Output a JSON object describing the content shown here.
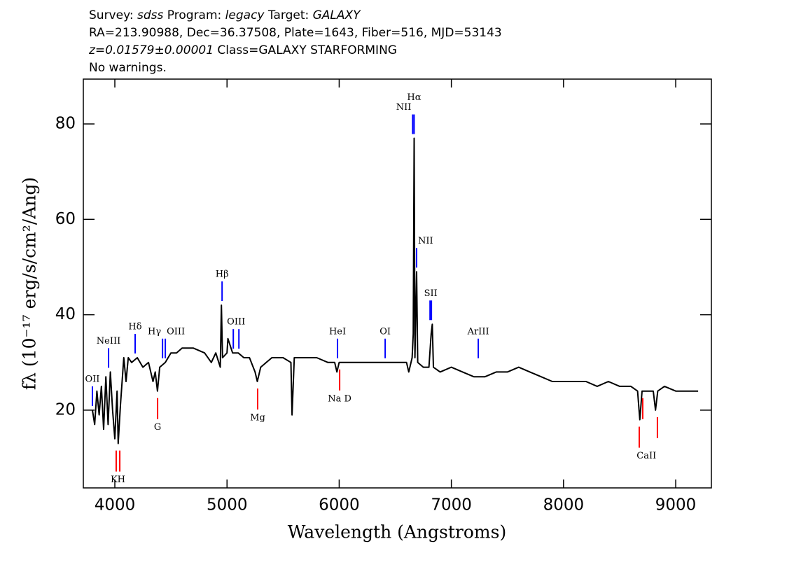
{
  "chart_data": {
    "type": "line",
    "header": [
      [
        {
          "text": "Survey: ",
          "italic": false
        },
        {
          "text": "sdss",
          "italic": true
        },
        {
          "text": " Program: ",
          "italic": false
        },
        {
          "text": "legacy",
          "italic": true
        },
        {
          "text": " Target: ",
          "italic": false
        },
        {
          "text": "GALAXY",
          "italic": true
        }
      ],
      [
        {
          "text": "RA=213.90988, Dec=36.37508, Plate=1643, Fiber=516, MJD=53143",
          "italic": false
        }
      ],
      [
        {
          "text": "z=0.01579±0.00001",
          "italic": true
        },
        {
          "text": " Class=GALAXY STARFORMING",
          "italic": false
        }
      ],
      [
        {
          "text": "No warnings.",
          "italic": false
        }
      ]
    ],
    "xlabel": "Wavelength (Angstroms)",
    "ylabel": "fλ (10⁻¹⁷ erg/s/cm²/Ang)",
    "color": "#000000",
    "emission_color": "#0000ff",
    "absorption_color": "#ff0000",
    "xlim": [
      3719,
      9318
    ],
    "ylim": [
      3.7,
      89.4
    ],
    "xticks": [
      4000,
      5000,
      6000,
      7000,
      8000,
      9000
    ],
    "yticks": [
      20,
      40,
      60,
      80
    ],
    "x": [
      3800,
      3820,
      3840,
      3860,
      3880,
      3900,
      3920,
      3940,
      3960,
      3980,
      4000,
      4020,
      4030,
      4050,
      4080,
      4100,
      4120,
      4150,
      4200,
      4250,
      4300,
      4340,
      4360,
      4380,
      4400,
      4450,
      4500,
      4550,
      4600,
      4700,
      4800,
      4860,
      4900,
      4940,
      4950,
      4960,
      5000,
      5008,
      5050,
      5100,
      5150,
      5200,
      5250,
      5270,
      5300,
      5400,
      5500,
      5570,
      5580,
      5600,
      5700,
      5800,
      5900,
      5960,
      5980,
      6000,
      6100,
      6200,
      6300,
      6400,
      6500,
      6600,
      6620,
      6650,
      6660,
      6668,
      6675,
      6690,
      6700,
      6750,
      6800,
      6820,
      6830,
      6840,
      6900,
      7000,
      7100,
      7200,
      7300,
      7400,
      7500,
      7600,
      7700,
      7800,
      7900,
      8000,
      8100,
      8200,
      8300,
      8400,
      8500,
      8600,
      8660,
      8680,
      8700,
      8800,
      8820,
      8840,
      8900,
      9000,
      9100,
      9200
    ],
    "values": [
      20,
      17,
      24,
      19,
      25,
      16,
      27,
      17,
      28,
      20,
      14,
      24,
      13,
      21,
      31,
      26,
      31,
      30,
      31,
      29,
      30,
      26,
      28,
      24,
      29,
      30,
      32,
      32,
      33,
      33,
      32,
      30,
      32,
      29,
      42,
      31,
      32,
      35,
      32,
      32,
      31,
      31,
      28,
      26,
      29,
      31,
      31,
      30,
      19,
      31,
      31,
      31,
      30,
      30,
      28,
      30,
      30,
      30,
      30,
      30,
      30,
      30,
      28,
      31,
      36,
      77,
      31,
      49,
      30,
      29,
      29,
      36,
      38,
      29,
      28,
      29,
      28,
      27,
      27,
      28,
      28,
      29,
      28,
      27,
      26,
      26,
      26,
      26,
      25,
      26,
      25,
      25,
      24,
      18,
      24,
      24,
      20,
      24,
      25,
      24,
      24,
      24
    ],
    "annotations": [
      {
        "text": "OII",
        "x": [
          3800
        ],
        "kind": "emission"
      },
      {
        "text": "NeIII",
        "x": [
          3944
        ],
        "kind": "emission"
      },
      {
        "text": "Hδ",
        "x": [
          4181
        ],
        "kind": "emission"
      },
      {
        "text": "Hγ",
        "x": [
          4425
        ],
        "kind": "emission"
      },
      {
        "text": "OIII",
        "x": [
          4450
        ],
        "kind": "emission"
      },
      {
        "text": "Hβ",
        "x": [
          4956
        ],
        "kind": "emission"
      },
      {
        "text": "OIII",
        "x": [
          5056,
          5106
        ],
        "kind": "emission"
      },
      {
        "text": "HeI",
        "x": [
          5985
        ],
        "kind": "emission"
      },
      {
        "text": "OI",
        "x": [
          6410
        ],
        "kind": "emission"
      },
      {
        "text": "NII",
        "x": [
          6655
        ],
        "kind": "emission"
      },
      {
        "text": "Hα",
        "x": [
          6668
        ],
        "kind": "emission"
      },
      {
        "text": "NII",
        "x": [
          6690
        ],
        "kind": "emission"
      },
      {
        "text": "SII",
        "x": [
          6810,
          6822
        ],
        "kind": "emission"
      },
      {
        "text": "ArIII",
        "x": [
          7240
        ],
        "kind": "emission"
      },
      {
        "text": "KH",
        "x": [
          4012,
          4044
        ],
        "kind": "absorption"
      },
      {
        "text": "G",
        "x": [
          4381
        ],
        "kind": "absorption"
      },
      {
        "text": "Mg",
        "x": [
          5273
        ],
        "kind": "absorption"
      },
      {
        "text": "Na D",
        "x": [
          6004
        ],
        "kind": "absorption"
      },
      {
        "text": "CaII",
        "x": [
          8675,
          8706,
          8837
        ],
        "kind": "absorption"
      }
    ]
  }
}
